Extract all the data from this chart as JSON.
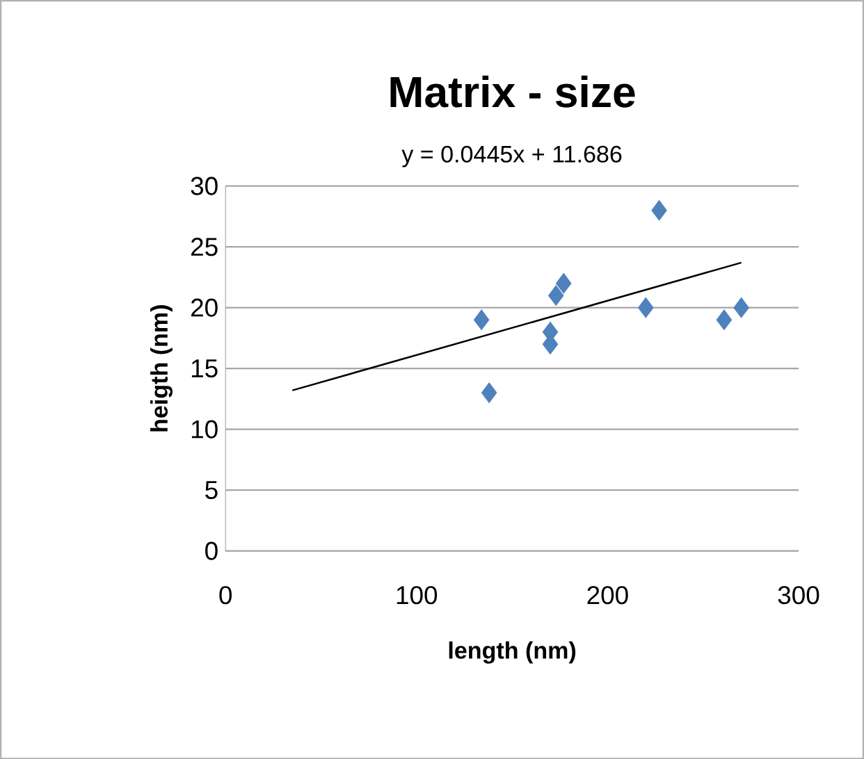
{
  "chart_data": {
    "type": "scatter",
    "title": "Matrix - size",
    "subtitle": "y = 0.0445x + 11.686",
    "xlabel": "length (nm)",
    "ylabel": "heigth (nm)",
    "xlim": [
      0,
      300
    ],
    "xticks": [
      0,
      100,
      200,
      300
    ],
    "ylim": [
      0,
      30
    ],
    "yticks": [
      0,
      5,
      10,
      15,
      20,
      25,
      30
    ],
    "grid": "y",
    "marker": "diamond",
    "series": [
      {
        "type": "scatter",
        "color": "#4f81bd",
        "x": [
          134,
          138,
          170,
          170,
          173,
          177,
          220,
          227,
          261,
          270
        ],
        "values": [
          19,
          13,
          18,
          17,
          21,
          22,
          20,
          28,
          19,
          20
        ]
      },
      {
        "type": "line",
        "color": "#000000",
        "marker": "none",
        "line_style": "solid",
        "x": [
          35,
          270
        ],
        "values": [
          13.2,
          23.7
        ]
      }
    ]
  }
}
